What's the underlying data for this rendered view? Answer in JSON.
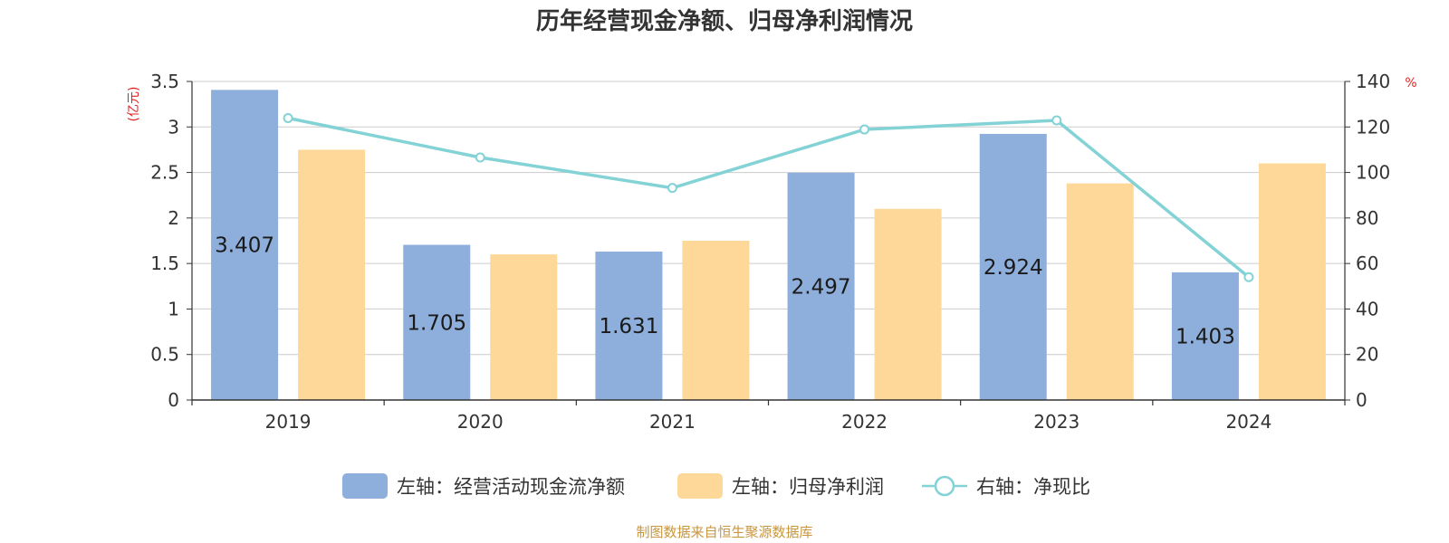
{
  "chart_data": {
    "type": "bar",
    "title": "历年经营现金净额、归母净利润情况",
    "categories": [
      "2019",
      "2020",
      "2021",
      "2022",
      "2023",
      "2024"
    ],
    "left_axis": {
      "unit": "(亿元)",
      "ylim": [
        0,
        3.5
      ],
      "ticks": [
        "0",
        "0.5",
        "1",
        "1.5",
        "2",
        "2.5",
        "3",
        "3.5"
      ]
    },
    "right_axis": {
      "unit": "%",
      "ylim": [
        0,
        140
      ],
      "ticks": [
        "0",
        "20",
        "40",
        "60",
        "80",
        "100",
        "120",
        "140"
      ]
    },
    "series": [
      {
        "name": "左轴：经营活动现金流净额",
        "type": "bar",
        "axis": "left",
        "color": "#8eaedb",
        "values": [
          3.407,
          1.705,
          1.631,
          2.497,
          2.924,
          1.403
        ],
        "labels": [
          "3.407",
          "1.705",
          "1.631",
          "2.497",
          "2.924",
          "1.403"
        ]
      },
      {
        "name": "左轴：归母净利润",
        "type": "bar",
        "axis": "left",
        "color": "#fed898",
        "values": [
          2.75,
          1.6,
          1.75,
          2.1,
          2.38,
          2.6
        ]
      },
      {
        "name": "右轴：净现比",
        "type": "line",
        "axis": "right",
        "color": "#83d2d5",
        "values": [
          123.9,
          106.6,
          93.2,
          118.9,
          122.9,
          54.0
        ]
      }
    ],
    "grid": true,
    "legend": "bottom"
  },
  "footer": {
    "source": "制图数据来自恒生聚源数据库"
  }
}
